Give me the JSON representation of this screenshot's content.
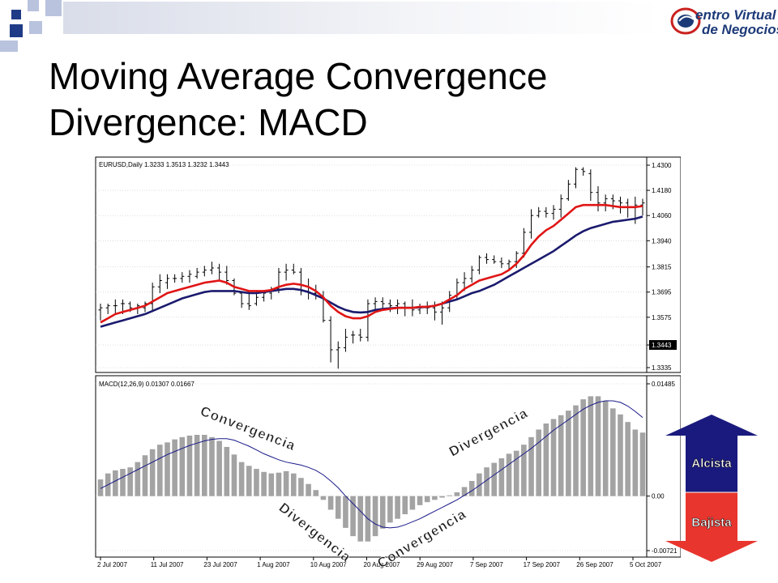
{
  "slide": {
    "title_line1": "Moving Average Convergence",
    "title_line2": "Divergence: MACD",
    "logo_line1": "entro Virtual",
    "logo_line2": "de Negocios"
  },
  "colors": {
    "square_dark": "#1f3a86",
    "square_light": "#b9c3de",
    "bar_gray": "#a3a3a3",
    "ema_fast": "#e01515",
    "ema_slow": "#1a1a6e",
    "bullish": "#1a1a7e",
    "bearish": "#e8352e"
  },
  "chart_data": [
    {
      "type": "candlestick",
      "header": "EURUSD,Daily  1.3233 1.3513 1.3232 1.3443",
      "y_ticks": [
        "1.4300",
        "1.4180",
        "1.4060",
        "1.3940",
        "1.3815",
        "1.3695",
        "1.3575",
        "1.3443",
        "1.3335"
      ],
      "current_price": "1.3443",
      "ylim": [
        1.3335,
        1.43
      ],
      "x_ticks": [
        "2 Jul 2007",
        "11 Jul 2007",
        "23 Jul 2007",
        "1 Aug 2007",
        "10 Aug 2007",
        "20 Aug 2007",
        "29 Aug 2007",
        "7 Sep 2007",
        "17 Sep 2007",
        "26 Sep 2007",
        "5 Oct 2007"
      ],
      "ohlc": [
        [
          1.361,
          1.364,
          1.356,
          1.362
        ],
        [
          1.362,
          1.364,
          1.359,
          1.363
        ],
        [
          1.363,
          1.366,
          1.359,
          1.363
        ],
        [
          1.364,
          1.366,
          1.359,
          1.364
        ],
        [
          1.364,
          1.365,
          1.36,
          1.362
        ],
        [
          1.362,
          1.364,
          1.359,
          1.363
        ],
        [
          1.362,
          1.365,
          1.36,
          1.364
        ],
        [
          1.364,
          1.374,
          1.36,
          1.372
        ],
        [
          1.372,
          1.378,
          1.369,
          1.375
        ],
        [
          1.374,
          1.378,
          1.371,
          1.376
        ],
        [
          1.376,
          1.378,
          1.374,
          1.376
        ],
        [
          1.376,
          1.379,
          1.374,
          1.377
        ],
        [
          1.377,
          1.38,
          1.374,
          1.378
        ],
        [
          1.377,
          1.381,
          1.376,
          1.379
        ],
        [
          1.379,
          1.382,
          1.377,
          1.38
        ],
        [
          1.38,
          1.384,
          1.378,
          1.381
        ],
        [
          1.381,
          1.383,
          1.375,
          1.379
        ],
        [
          1.379,
          1.382,
          1.373,
          1.375
        ],
        [
          1.375,
          1.376,
          1.368,
          1.369
        ],
        [
          1.369,
          1.37,
          1.362,
          1.364
        ],
        [
          1.364,
          1.37,
          1.361,
          1.363
        ],
        [
          1.364,
          1.37,
          1.363,
          1.367
        ],
        [
          1.367,
          1.37,
          1.365,
          1.369
        ],
        [
          1.369,
          1.372,
          1.366,
          1.371
        ],
        [
          1.371,
          1.381,
          1.369,
          1.379
        ],
        [
          1.379,
          1.383,
          1.375,
          1.38
        ],
        [
          1.38,
          1.383,
          1.378,
          1.379
        ],
        [
          1.379,
          1.381,
          1.368,
          1.37
        ],
        [
          1.37,
          1.376,
          1.366,
          1.369
        ],
        [
          1.369,
          1.373,
          1.366,
          1.368
        ],
        [
          1.367,
          1.37,
          1.355,
          1.356
        ],
        [
          1.356,
          1.358,
          1.336,
          1.342
        ],
        [
          1.342,
          1.346,
          1.333,
          1.343
        ],
        [
          1.343,
          1.352,
          1.341,
          1.348
        ],
        [
          1.349,
          1.351,
          1.345,
          1.349
        ],
        [
          1.349,
          1.352,
          1.346,
          1.348
        ],
        [
          1.348,
          1.366,
          1.346,
          1.364
        ],
        [
          1.364,
          1.367,
          1.36,
          1.365
        ],
        [
          1.365,
          1.367,
          1.361,
          1.364
        ],
        [
          1.364,
          1.366,
          1.36,
          1.363
        ],
        [
          1.363,
          1.366,
          1.359,
          1.364
        ],
        [
          1.364,
          1.365,
          1.358,
          1.362
        ],
        [
          1.362,
          1.366,
          1.358,
          1.361
        ],
        [
          1.361,
          1.364,
          1.359,
          1.362
        ],
        [
          1.362,
          1.365,
          1.359,
          1.362
        ],
        [
          1.362,
          1.365,
          1.356,
          1.36
        ],
        [
          1.36,
          1.365,
          1.354,
          1.362
        ],
        [
          1.362,
          1.37,
          1.36,
          1.368
        ],
        [
          1.368,
          1.376,
          1.366,
          1.374
        ],
        [
          1.374,
          1.379,
          1.37,
          1.376
        ],
        [
          1.376,
          1.382,
          1.374,
          1.38
        ],
        [
          1.38,
          1.387,
          1.378,
          1.386
        ],
        [
          1.386,
          1.388,
          1.383,
          1.385
        ],
        [
          1.385,
          1.387,
          1.383,
          1.384
        ],
        [
          1.384,
          1.386,
          1.381,
          1.383
        ],
        [
          1.383,
          1.385,
          1.38,
          1.384
        ],
        [
          1.384,
          1.389,
          1.381,
          1.388
        ],
        [
          1.388,
          1.4,
          1.386,
          1.398
        ],
        [
          1.398,
          1.409,
          1.395,
          1.406
        ],
        [
          1.406,
          1.41,
          1.405,
          1.408
        ],
        [
          1.408,
          1.41,
          1.405,
          1.407
        ],
        [
          1.407,
          1.411,
          1.404,
          1.409
        ],
        [
          1.409,
          1.416,
          1.405,
          1.414
        ],
        [
          1.414,
          1.423,
          1.413,
          1.421
        ],
        [
          1.421,
          1.429,
          1.419,
          1.428
        ],
        [
          1.428,
          1.429,
          1.425,
          1.427
        ],
        [
          1.426,
          1.428,
          1.413,
          1.417
        ],
        [
          1.417,
          1.42,
          1.408,
          1.412
        ],
        [
          1.412,
          1.416,
          1.408,
          1.414
        ],
        [
          1.414,
          1.416,
          1.409,
          1.413
        ],
        [
          1.413,
          1.415,
          1.407,
          1.412
        ],
        [
          1.412,
          1.414,
          1.405,
          1.41
        ],
        [
          1.41,
          1.415,
          1.402,
          1.411
        ],
        [
          1.411,
          1.414,
          1.406,
          1.412
        ]
      ],
      "ema_fast": [
        1.355,
        1.357,
        1.359,
        1.36,
        1.361,
        1.362,
        1.363,
        1.365,
        1.367,
        1.369,
        1.37,
        1.371,
        1.372,
        1.373,
        1.374,
        1.3745,
        1.375,
        1.374,
        1.372,
        1.371,
        1.37,
        1.37,
        1.37,
        1.3705,
        1.372,
        1.373,
        1.3735,
        1.373,
        1.372,
        1.37,
        1.367,
        1.363,
        1.36,
        1.358,
        1.357,
        1.357,
        1.358,
        1.36,
        1.361,
        1.3615,
        1.362,
        1.362,
        1.362,
        1.3625,
        1.3625,
        1.363,
        1.364,
        1.366,
        1.368,
        1.371,
        1.373,
        1.375,
        1.376,
        1.377,
        1.378,
        1.38,
        1.383,
        1.387,
        1.392,
        1.396,
        1.399,
        1.401,
        1.404,
        1.407,
        1.41,
        1.411,
        1.411,
        1.411,
        1.411,
        1.4105,
        1.41,
        1.41,
        1.41,
        1.4105
      ],
      "ema_slow": [
        1.353,
        1.354,
        1.355,
        1.356,
        1.357,
        1.358,
        1.359,
        1.3605,
        1.362,
        1.3635,
        1.365,
        1.3665,
        1.3675,
        1.3685,
        1.3695,
        1.37,
        1.37,
        1.37,
        1.37,
        1.3695,
        1.369,
        1.369,
        1.3695,
        1.37,
        1.3705,
        1.371,
        1.371,
        1.3705,
        1.3695,
        1.368,
        1.3665,
        1.3645,
        1.3625,
        1.361,
        1.36,
        1.3598,
        1.36,
        1.361,
        1.3615,
        1.3618,
        1.362,
        1.362,
        1.362,
        1.3622,
        1.3625,
        1.363,
        1.364,
        1.365,
        1.366,
        1.3675,
        1.369,
        1.37,
        1.3715,
        1.373,
        1.375,
        1.377,
        1.379,
        1.381,
        1.383,
        1.385,
        1.387,
        1.389,
        1.3915,
        1.394,
        1.3965,
        1.3985,
        1.4,
        1.401,
        1.402,
        1.403,
        1.4035,
        1.404,
        1.4045,
        1.4055
      ]
    },
    {
      "type": "bar",
      "header": "MACD(12,26,9) 0.01307 0.01667",
      "y_ticks": [
        "0.01485",
        "0.00",
        "-0.00721"
      ],
      "ylim": [
        -0.00721,
        0.01485
      ],
      "values": [
        0.0022,
        0.003,
        0.0034,
        0.0036,
        0.0038,
        0.0045,
        0.0054,
        0.0062,
        0.0068,
        0.0071,
        0.0075,
        0.0078,
        0.008,
        0.0081,
        0.0081,
        0.0078,
        0.0073,
        0.0065,
        0.0055,
        0.0045,
        0.004,
        0.0036,
        0.0032,
        0.003,
        0.0031,
        0.0033,
        0.003,
        0.0024,
        0.0016,
        0.0008,
        -0.0005,
        -0.0018,
        -0.003,
        -0.0042,
        -0.0053,
        -0.006,
        -0.006,
        -0.0053,
        -0.0043,
        -0.0035,
        -0.003,
        -0.0024,
        -0.0018,
        -0.0012,
        -0.0008,
        -0.0005,
        -0.0002,
        0.0001,
        0.0005,
        0.0012,
        0.002,
        0.003,
        0.0038,
        0.0044,
        0.005,
        0.0056,
        0.006,
        0.0068,
        0.0078,
        0.0088,
        0.0096,
        0.0102,
        0.0107,
        0.0113,
        0.012,
        0.0128,
        0.0132,
        0.0132,
        0.0126,
        0.0116,
        0.0108,
        0.0098,
        0.0088,
        0.0084
      ],
      "signal": [
        0.001,
        0.0015,
        0.002,
        0.0025,
        0.003,
        0.0035,
        0.004,
        0.0045,
        0.005,
        0.0055,
        0.0059,
        0.0063,
        0.0067,
        0.007,
        0.0073,
        0.0075,
        0.0076,
        0.0076,
        0.0074,
        0.007,
        0.0066,
        0.0061,
        0.0056,
        0.0052,
        0.0048,
        0.0045,
        0.0043,
        0.0041,
        0.0038,
        0.0034,
        0.0028,
        0.002,
        0.0011,
        0.0,
        -0.001,
        -0.002,
        -0.003,
        -0.0037,
        -0.0041,
        -0.0042,
        -0.0041,
        -0.0038,
        -0.0034,
        -0.003,
        -0.0025,
        -0.002,
        -0.0015,
        -0.001,
        -0.0005,
        0.0001,
        0.0007,
        0.0014,
        0.0021,
        0.0028,
        0.0035,
        0.0042,
        0.0049,
        0.0056,
        0.0063,
        0.0071,
        0.0079,
        0.0087,
        0.0094,
        0.0101,
        0.0108,
        0.0115,
        0.012,
        0.0124,
        0.0126,
        0.0126,
        0.0124,
        0.0119,
        0.0112,
        0.0104
      ]
    }
  ],
  "annotations": {
    "convergencia_1": "Convergencia",
    "convergencia_2": "Convergencia",
    "divergencia_1": "Divergencia",
    "divergencia_2": "Divergencia"
  },
  "arrows": {
    "up_label": "Alcista",
    "down_label": "Bajista"
  }
}
